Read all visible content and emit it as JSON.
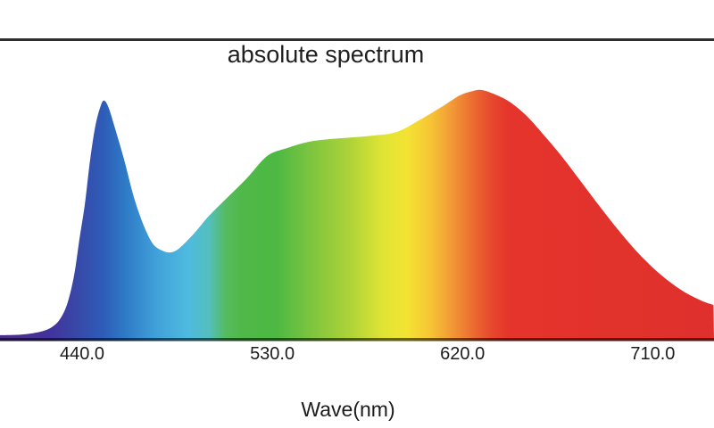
{
  "chart_data": {
    "type": "area",
    "title": "absolute spectrum",
    "xlabel": "Wave(nm)",
    "ylabel": "",
    "legend": null,
    "grid": false,
    "x_axis": {
      "tick_labels": [
        "440.0",
        "530.0",
        "620.0",
        "710.0"
      ],
      "tick_values": [
        440.0,
        530.0,
        620.0,
        710.0
      ],
      "range_nm": [
        401,
        739
      ]
    },
    "y_axis": {
      "range": [
        0,
        1
      ],
      "note": "relative intensity, unlabeled axis"
    },
    "series_name": "absolute spectrum",
    "points_nm_intensity": [
      [
        401.1,
        0.011
      ],
      [
        411.7,
        0.014
      ],
      [
        420.1,
        0.025
      ],
      [
        425.6,
        0.043
      ],
      [
        429.8,
        0.079
      ],
      [
        433.2,
        0.144
      ],
      [
        436.2,
        0.252
      ],
      [
        438.7,
        0.396
      ],
      [
        441.3,
        0.54
      ],
      [
        443.8,
        0.719
      ],
      [
        446.3,
        0.856
      ],
      [
        448.9,
        0.939
      ],
      [
        450.6,
        0.957
      ],
      [
        452.7,
        0.925
      ],
      [
        455.7,
        0.842
      ],
      [
        459.9,
        0.719
      ],
      [
        464.5,
        0.568
      ],
      [
        469.2,
        0.453
      ],
      [
        473.4,
        0.381
      ],
      [
        477.7,
        0.353
      ],
      [
        481.9,
        0.345
      ],
      [
        486.1,
        0.363
      ],
      [
        492.9,
        0.421
      ],
      [
        500.1,
        0.493
      ],
      [
        508.6,
        0.565
      ],
      [
        517.9,
        0.644
      ],
      [
        527.6,
        0.734
      ],
      [
        536.9,
        0.766
      ],
      [
        547.1,
        0.791
      ],
      [
        557.2,
        0.802
      ],
      [
        567.8,
        0.809
      ],
      [
        578.4,
        0.817
      ],
      [
        588.9,
        0.831
      ],
      [
        599.5,
        0.878
      ],
      [
        610.1,
        0.932
      ],
      [
        618.6,
        0.978
      ],
      [
        624.9,
        0.996
      ],
      [
        629.1,
        1.0
      ],
      [
        635.5,
        0.982
      ],
      [
        642.7,
        0.95
      ],
      [
        650.3,
        0.896
      ],
      [
        658.3,
        0.82
      ],
      [
        667.2,
        0.73
      ],
      [
        676.1,
        0.63
      ],
      [
        685.4,
        0.525
      ],
      [
        695.1,
        0.421
      ],
      [
        704.4,
        0.331
      ],
      [
        714.2,
        0.252
      ],
      [
        723.9,
        0.191
      ],
      [
        732.8,
        0.151
      ],
      [
        738.7,
        0.133
      ]
    ],
    "spectrum_gradient_stops": [
      [
        401,
        "#4B2D87"
      ],
      [
        424,
        "#42329B"
      ],
      [
        438,
        "#3849A8"
      ],
      [
        450,
        "#2E5CB8"
      ],
      [
        461,
        "#2F7CC7"
      ],
      [
        476,
        "#41A3DA"
      ],
      [
        490,
        "#4FBADF"
      ],
      [
        500,
        "#53BFBE"
      ],
      [
        508,
        "#55BB5F"
      ],
      [
        516,
        "#50B848"
      ],
      [
        532,
        "#4DB843"
      ],
      [
        550,
        "#82C63E"
      ],
      [
        566,
        "#ACD239"
      ],
      [
        582,
        "#DFE434"
      ],
      [
        594,
        "#F4E333"
      ],
      [
        605,
        "#F6C434"
      ],
      [
        614,
        "#F29E37"
      ],
      [
        623,
        "#ED7431"
      ],
      [
        633,
        "#E74A2D"
      ],
      [
        642,
        "#E5342B"
      ],
      [
        739,
        "#DF302D"
      ]
    ],
    "colors": {
      "top_rule": "#2e2e2e",
      "axis_line_base": "#3a3038",
      "text": "#1c1c1c",
      "background": "#ffffff"
    }
  }
}
